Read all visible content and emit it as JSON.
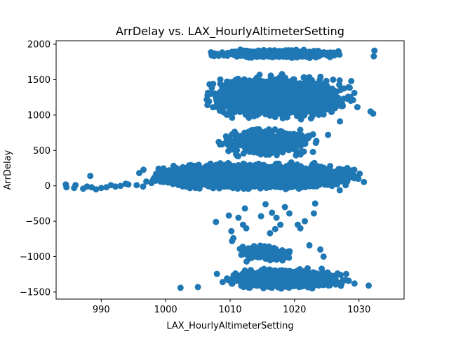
{
  "chart_data": {
    "type": "scatter",
    "title": "ArrDelay vs. LAX_HourlyAltimeterSetting",
    "xlabel": "LAX_HourlyAltimeterSetting",
    "ylabel": "ArrDelay",
    "xlim": [
      983.0,
      1037.0
    ],
    "ylim": [
      -1600,
      2050
    ],
    "xticks": [
      990,
      1000,
      1010,
      1020,
      1030
    ],
    "yticks": [
      -1500,
      -1000,
      -500,
      0,
      500,
      1000,
      1500,
      2000
    ],
    "grid": false,
    "legend": "none",
    "marker_color": "#1f77b4",
    "series": [
      {
        "clusters": [
          {
            "x_range": [
              1004.5,
              1030.0
            ],
            "y_range": [
              1790,
              1940
            ],
            "count": 520
          },
          {
            "x_range": [
              1004.0,
              1031.0
            ],
            "y_range": [
              880,
              1620
            ],
            "count": 2600
          },
          {
            "x_range": [
              1006.0,
              1026.0
            ],
            "y_range": [
              350,
              900
            ],
            "count": 420
          },
          {
            "x_range": [
              995.0,
              1032.5
            ],
            "y_range": [
              -80,
              350
            ],
            "count": 5200
          },
          {
            "x_range": [
              1007.0,
              1030.0
            ],
            "y_range": [
              -1480,
              -1150
            ],
            "count": 1500
          },
          {
            "x_range": [
              1009.0,
              1022.0
            ],
            "y_range": [
              -1100,
              -800
            ],
            "count": 120
          }
        ],
        "points": [
          {
            "x": 984.5,
            "y": 20
          },
          {
            "x": 984.6,
            "y": -20
          },
          {
            "x": 985.8,
            "y": -30
          },
          {
            "x": 986.0,
            "y": 10
          },
          {
            "x": 987.2,
            "y": -40
          },
          {
            "x": 987.8,
            "y": -10
          },
          {
            "x": 988.3,
            "y": 140
          },
          {
            "x": 988.5,
            "y": -20
          },
          {
            "x": 989.2,
            "y": -50
          },
          {
            "x": 990.0,
            "y": -30
          },
          {
            "x": 990.8,
            "y": -20
          },
          {
            "x": 991.5,
            "y": 10
          },
          {
            "x": 992.2,
            "y": -10
          },
          {
            "x": 993.0,
            "y": 0
          },
          {
            "x": 993.8,
            "y": 30
          },
          {
            "x": 994.2,
            "y": 20
          },
          {
            "x": 995.5,
            "y": 10
          },
          {
            "x": 995.9,
            "y": 180
          },
          {
            "x": 996.5,
            "y": -10
          },
          {
            "x": 997.0,
            "y": 60
          },
          {
            "x": 997.8,
            "y": 40
          },
          {
            "x": 998.2,
            "y": 110
          },
          {
            "x": 998.8,
            "y": 140
          },
          {
            "x": 999.2,
            "y": 60
          },
          {
            "x": 1002.3,
            "y": -1440
          },
          {
            "x": 1005.0,
            "y": -1430
          },
          {
            "x": 1007.8,
            "y": -510
          },
          {
            "x": 1009.8,
            "y": -420
          },
          {
            "x": 1010.2,
            "y": -640
          },
          {
            "x": 1010.3,
            "y": -780
          },
          {
            "x": 1010.5,
            "y": -740
          },
          {
            "x": 1011.3,
            "y": -450
          },
          {
            "x": 1012.0,
            "y": -550
          },
          {
            "x": 1012.3,
            "y": -320
          },
          {
            "x": 1012.5,
            "y": -600
          },
          {
            "x": 1014.8,
            "y": -430
          },
          {
            "x": 1015.5,
            "y": -260
          },
          {
            "x": 1016.2,
            "y": -670
          },
          {
            "x": 1016.5,
            "y": -380
          },
          {
            "x": 1017.0,
            "y": -610
          },
          {
            "x": 1017.2,
            "y": -450
          },
          {
            "x": 1017.8,
            "y": -550
          },
          {
            "x": 1018.5,
            "y": -300
          },
          {
            "x": 1019.2,
            "y": -390
          },
          {
            "x": 1020.5,
            "y": -550
          },
          {
            "x": 1020.9,
            "y": -600
          },
          {
            "x": 1021.6,
            "y": -500
          },
          {
            "x": 1022.3,
            "y": -840
          },
          {
            "x": 1023.0,
            "y": -390
          },
          {
            "x": 1023.2,
            "y": -250
          },
          {
            "x": 1024.0,
            "y": -900
          },
          {
            "x": 1024.5,
            "y": -1000
          },
          {
            "x": 1031.5,
            "y": -1410
          },
          {
            "x": 1029.3,
            "y": -1380
          },
          {
            "x": 1032.3,
            "y": 1830
          },
          {
            "x": 1032.4,
            "y": 1910
          },
          {
            "x": 1031.8,
            "y": 1050
          },
          {
            "x": 1032.2,
            "y": 1020
          },
          {
            "x": 1025.2,
            "y": 720
          },
          {
            "x": 1024.5,
            "y": 1010
          },
          {
            "x": 1027.0,
            "y": 1490
          },
          {
            "x": 1028.8,
            "y": 1480
          }
        ]
      }
    ]
  }
}
